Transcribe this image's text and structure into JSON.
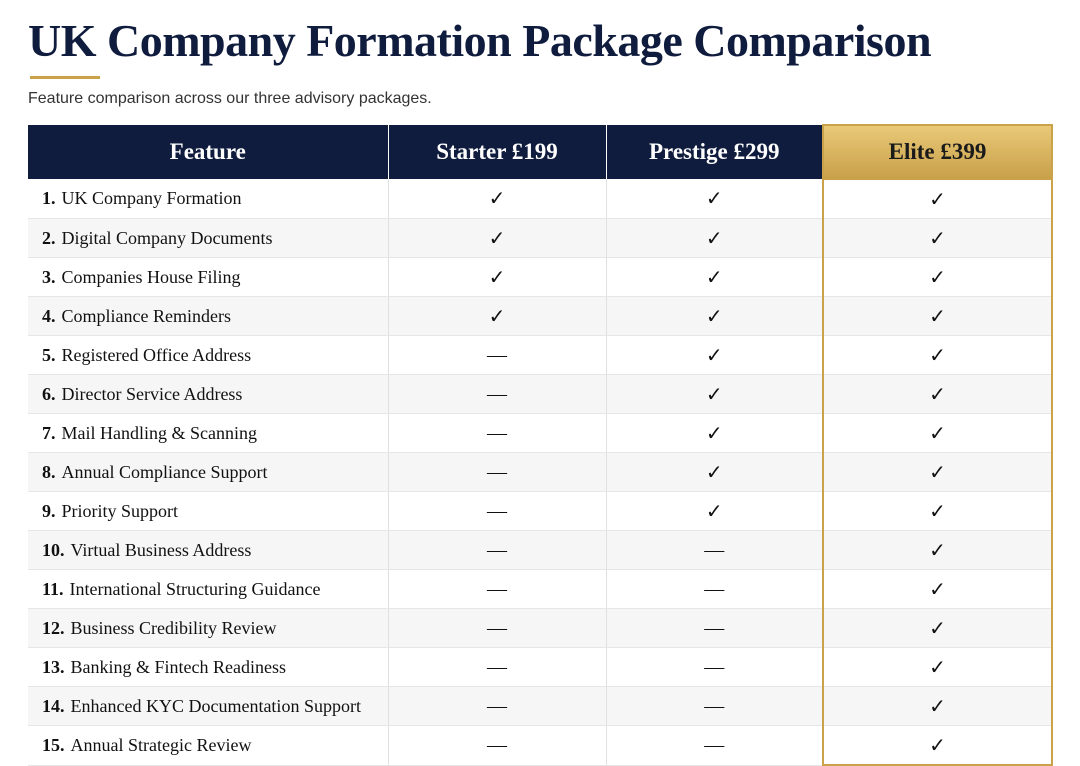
{
  "header": {
    "title": "UK Company Formation Package Comparison",
    "subtitle": "Feature comparison across our three advisory packages."
  },
  "table": {
    "columns": [
      "Feature",
      "Starter £199",
      "Prestige £299",
      "Elite £399"
    ],
    "rows": [
      {
        "number": "1.",
        "feature": "UK Company Formation",
        "cells": [
          "✓",
          "✓",
          "✓"
        ]
      },
      {
        "number": "2.",
        "feature": "Digital Company Documents",
        "cells": [
          "✓",
          "✓",
          "✓"
        ]
      },
      {
        "number": "3.",
        "feature": "Companies House Filing",
        "cells": [
          "✓",
          "✓",
          "✓"
        ]
      },
      {
        "number": "4.",
        "feature": "Compliance Reminders",
        "cells": [
          "✓",
          "✓",
          "✓"
        ]
      },
      {
        "number": "5.",
        "feature": "Registered Office Address",
        "cells": [
          "—",
          "✓",
          "✓"
        ]
      },
      {
        "number": "6.",
        "feature": "Director Service Address",
        "cells": [
          "—",
          "✓",
          "✓"
        ]
      },
      {
        "number": "7.",
        "feature": "Mail Handling & Scanning",
        "cells": [
          "—",
          "✓",
          "✓"
        ]
      },
      {
        "number": "8.",
        "feature": "Annual Compliance Support",
        "cells": [
          "—",
          "✓",
          "✓"
        ]
      },
      {
        "number": "9.",
        "feature": "Priority Support",
        "cells": [
          "—",
          "✓",
          "✓"
        ]
      },
      {
        "number": "10.",
        "feature": "Virtual Business Address",
        "cells": [
          "—",
          "—",
          "✓"
        ]
      },
      {
        "number": "11.",
        "feature": "International Structuring Guidance",
        "cells": [
          "—",
          "—",
          "✓"
        ]
      },
      {
        "number": "12.",
        "feature": "Business Credibility Review",
        "cells": [
          "—",
          "—",
          "✓"
        ]
      },
      {
        "number": "13.",
        "feature": "Banking & Fintech Readiness",
        "cells": [
          "—",
          "—",
          "✓"
        ]
      },
      {
        "number": "14.",
        "feature": "Enhanced KYC Documentation Support",
        "cells": [
          "—",
          "—",
          "✓"
        ]
      },
      {
        "number": "15.",
        "feature": "Annual Strategic Review",
        "cells": [
          "—",
          "—",
          "✓"
        ]
      }
    ]
  }
}
